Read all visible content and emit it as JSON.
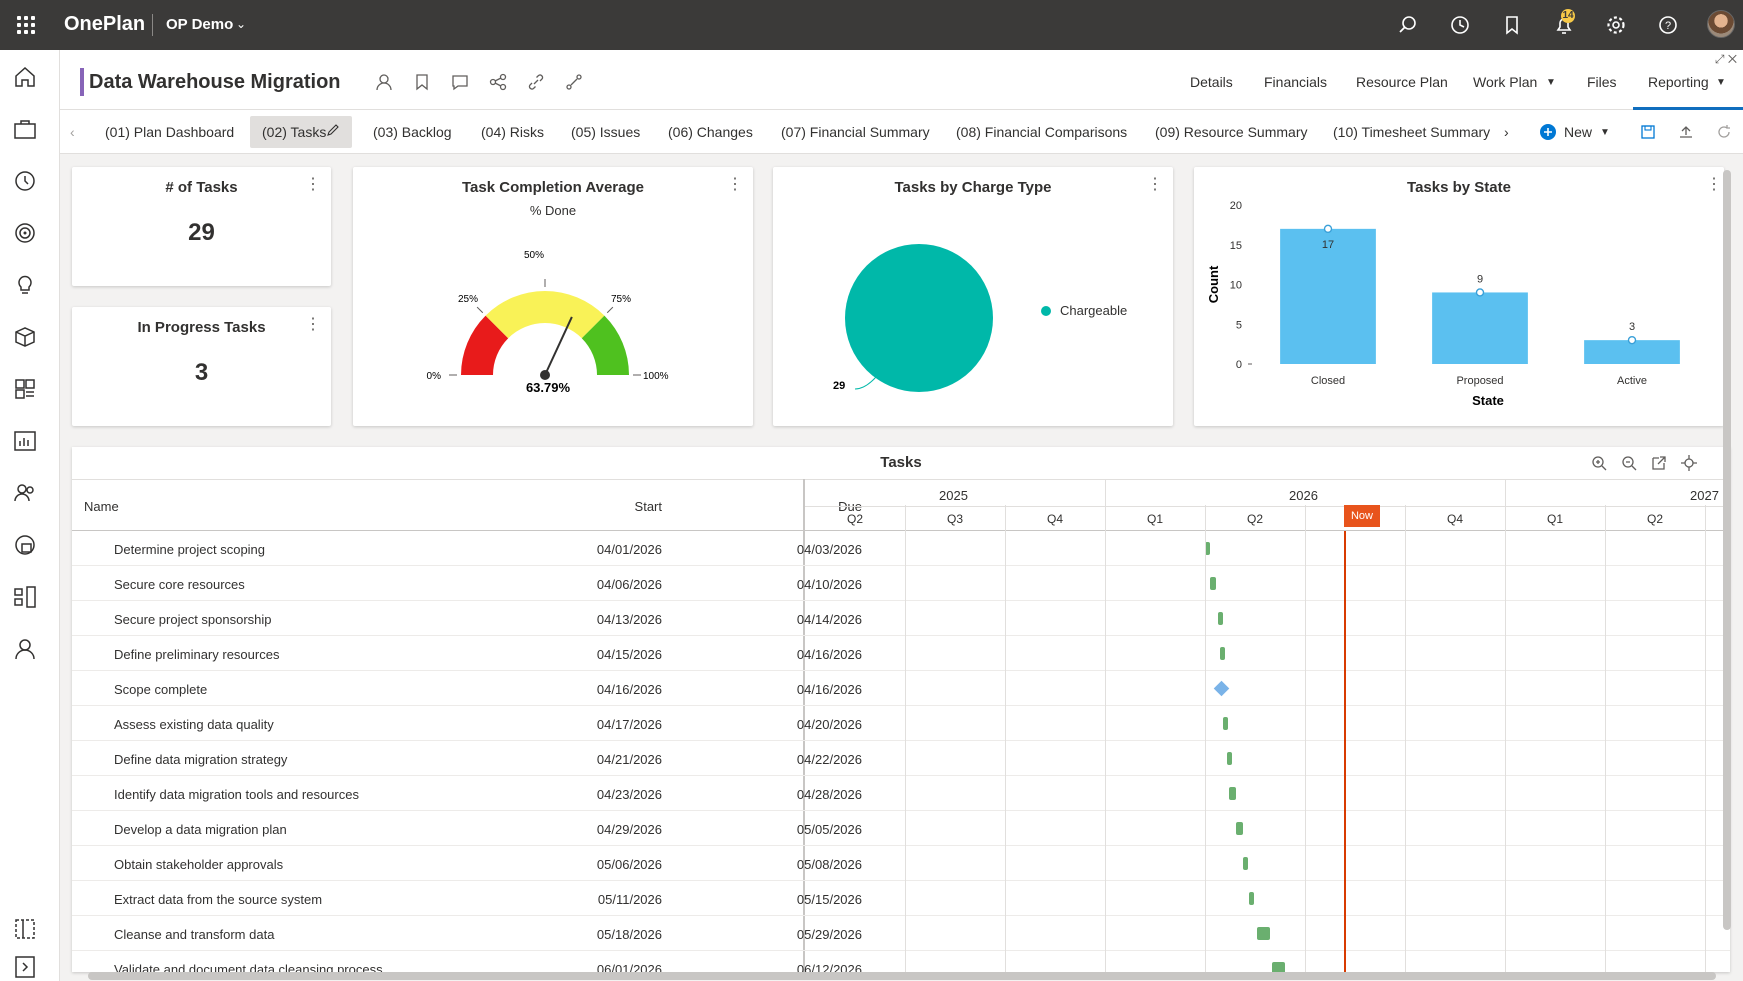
{
  "app": {
    "brand": "OnePlan",
    "tenant": "OP Demo",
    "notification_count": "14"
  },
  "header": {
    "title": "Data Warehouse Migration",
    "nav": [
      "Details",
      "Financials",
      "Resource Plan",
      "Work Plan",
      "Files",
      "Reporting"
    ],
    "active_nav": "Reporting"
  },
  "tabs": [
    "(01) Plan Dashboard",
    "(02) Tasks",
    "(03) Backlog",
    "(04) Risks",
    "(05) Issues",
    "(06) Changes",
    "(07) Financial Summary",
    "(08) Financial Comparisons",
    "(09) Resource Summary",
    "(10) Timesheet Summary"
  ],
  "active_tab": "(02) Tasks",
  "new_label": "New",
  "cards": {
    "num_tasks": {
      "title": "# of Tasks",
      "value": "29"
    },
    "in_progress": {
      "title": "In Progress Tasks",
      "value": "3"
    },
    "completion": {
      "title": "Task Completion Average",
      "subtitle": "% Done",
      "value_label": "63.79%",
      "value": 63.79,
      "ticks": [
        "0%",
        "25%",
        "50%",
        "75%",
        "100%"
      ]
    },
    "charge_type": {
      "title": "Tasks by Charge Type",
      "legend": "Chargeable",
      "slice_label": "29"
    },
    "state": {
      "title": "Tasks by State"
    }
  },
  "chart_data": [
    {
      "type": "pie",
      "title": "Tasks by Charge Type",
      "categories": [
        "Chargeable"
      ],
      "values": [
        29
      ],
      "colors": [
        "#00b8a9"
      ],
      "legend": "right"
    },
    {
      "type": "bar",
      "title": "Tasks by State",
      "categories": [
        "Closed",
        "Proposed",
        "Active"
      ],
      "values": [
        17,
        9,
        3
      ],
      "xlabel": "State",
      "ylabel": "Count",
      "ylim": [
        0,
        20
      ],
      "yticks": [
        "0",
        "5",
        "10",
        "15",
        "20"
      ],
      "color": "#5bc0f0",
      "grid": false
    }
  ],
  "tasks": {
    "title": "Tasks",
    "columns": {
      "name": "Name",
      "start": "Start",
      "due": "Due"
    },
    "years": [
      "2025",
      "2026",
      "2027"
    ],
    "quarters": [
      "Q2",
      "Q3",
      "Q4",
      "Q1",
      "Q2",
      "Q3",
      "Q4",
      "Q1",
      "Q2"
    ],
    "now_label": "Now",
    "rows": [
      {
        "name": "Determine project scoping",
        "start": "04/01/2026",
        "due": "04/03/2026"
      },
      {
        "name": "Secure core resources",
        "start": "04/06/2026",
        "due": "04/10/2026"
      },
      {
        "name": "Secure project sponsorship",
        "start": "04/13/2026",
        "due": "04/14/2026"
      },
      {
        "name": "Define preliminary resources",
        "start": "04/15/2026",
        "due": "04/16/2026"
      },
      {
        "name": "Scope complete",
        "start": "04/16/2026",
        "due": "04/16/2026",
        "milestone": true
      },
      {
        "name": "Assess existing data quality",
        "start": "04/17/2026",
        "due": "04/20/2026"
      },
      {
        "name": "Define data migration strategy",
        "start": "04/21/2026",
        "due": "04/22/2026"
      },
      {
        "name": "Identify data migration tools and resources",
        "start": "04/23/2026",
        "due": "04/28/2026"
      },
      {
        "name": "Develop a data migration plan",
        "start": "04/29/2026",
        "due": "05/05/2026"
      },
      {
        "name": "Obtain stakeholder approvals",
        "start": "05/06/2026",
        "due": "05/08/2026"
      },
      {
        "name": "Extract data from the source system",
        "start": "05/11/2026",
        "due": "05/15/2026"
      },
      {
        "name": "Cleanse and transform data",
        "start": "05/18/2026",
        "due": "05/29/2026"
      },
      {
        "name": "Validate and document data cleansing process",
        "start": "06/01/2026",
        "due": "06/12/2026"
      }
    ]
  }
}
